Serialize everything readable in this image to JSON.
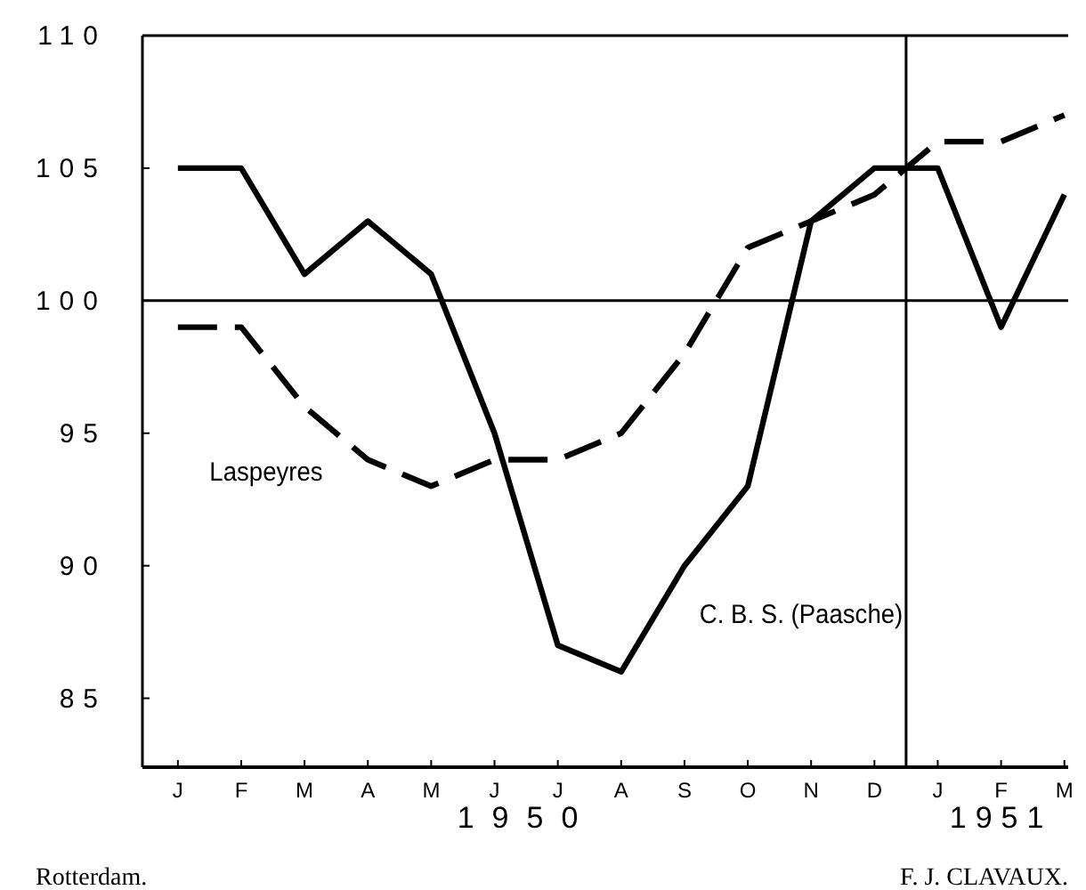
{
  "chart_data": {
    "type": "line",
    "categories": [
      "J",
      "F",
      "M",
      "A",
      "M",
      "J",
      "J",
      "A",
      "S",
      "O",
      "N",
      "D",
      "J",
      "F",
      "M"
    ],
    "ylim": [
      82.4,
      110
    ],
    "yticks": [
      85,
      90,
      95,
      100,
      105,
      110
    ],
    "series": [
      {
        "name": "C. B. S. (Paasche)",
        "color": "#000000",
        "line_style": "solid",
        "values": [
          105,
          105,
          101,
          103,
          101,
          95,
          87,
          86,
          90,
          93,
          103,
          105,
          105,
          99,
          104
        ]
      },
      {
        "name": "Laspeyres",
        "color": "#000000",
        "line_style": "dashed",
        "values": [
          99,
          99,
          96,
          94,
          93,
          94,
          94,
          95,
          98,
          102,
          103,
          104,
          106,
          106,
          107
        ]
      }
    ],
    "ref_lines": [
      {
        "axis": "y",
        "value": 100,
        "color": "#000000"
      }
    ],
    "annotations": [
      "1950",
      "1951",
      "Rotterdam.",
      "F. J. CLAVAUX."
    ],
    "grid": false,
    "marker": "none"
  }
}
